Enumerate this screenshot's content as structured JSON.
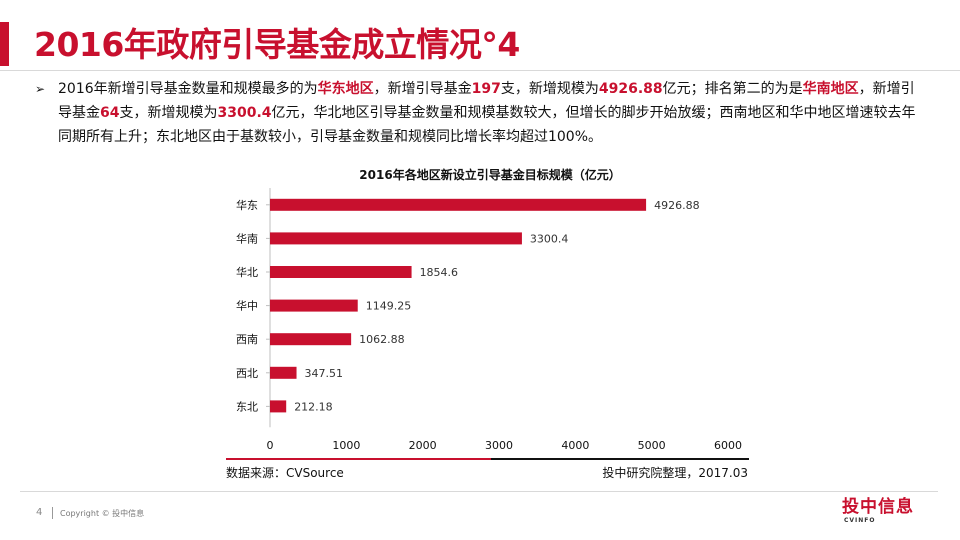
{
  "slide": {
    "title": "2016年政府引导基金成立情况°4",
    "bullet": {
      "p1": "2016年新增引导基金数量和规模最多的为",
      "h1": "华东地区",
      "p2": "，新增引导基金",
      "h2": "197",
      "p3": "支，新增规模为",
      "h3": "4926.88",
      "p4": "亿元；排名第二的为是",
      "h4": "华南地区",
      "p5": "，新增引导基金",
      "h5": "64",
      "p6": "支，新增规模为",
      "h6": "3300.4",
      "p7": "亿元，华北地区引导基金数量和规模基数较大，但增长的脚步开始放缓；西南地区和华中地区增速较去年同期所有上升；东北地区由于基数较小，引导基金数量和规模同比增长率均超过100%。"
    },
    "source_left": "数据来源：CVSource",
    "source_right": "投中研究院整理，2017.03",
    "page_number": "4",
    "copyright": "Copyright © 投中信息",
    "logo_text": "投中信息",
    "logo_sub": "CVINFO"
  },
  "colors": {
    "accent": "#c8102e",
    "bar": "#c8102e",
    "text": "#111111"
  },
  "chart_data": {
    "type": "bar",
    "orientation": "horizontal",
    "title": "2016年各地区新设立引导基金目标规模（亿元）",
    "categories": [
      "华东",
      "华南",
      "华北",
      "华中",
      "西南",
      "西北",
      "东北"
    ],
    "values": [
      4926.88,
      3300.4,
      1854.6,
      1149.25,
      1062.88,
      347.51,
      212.18
    ],
    "value_labels": [
      "4926.88",
      "3300.4",
      "1854.6",
      "1149.25",
      "1062.88",
      "347.51",
      "212.18"
    ],
    "xticks": [
      "0",
      "1000",
      "2000",
      "3000",
      "4000",
      "5000",
      "6000"
    ],
    "xlim": [
      0,
      6000
    ],
    "grid": false,
    "legend": "none"
  }
}
